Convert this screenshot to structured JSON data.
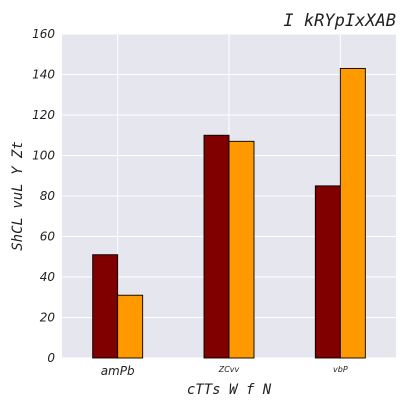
{
  "chart_data": {
    "type": "bar",
    "title": "I kRYpIxXAB",
    "xlabel": "cTTs W f N",
    "ylabel": "ShCL vuL Y  Zt",
    "categories": [
      "amPb",
      "ZCvv",
      "vbP"
    ],
    "series": [
      {
        "color": "#800000",
        "values": [
          51,
          110,
          85
        ]
      },
      {
        "color": "#ff9900",
        "values": [
          31,
          107,
          143
        ]
      }
    ],
    "ylim": [
      0,
      160
    ],
    "yticks": [
      0,
      20,
      40,
      60,
      80,
      100,
      120,
      140,
      160
    ],
    "grid": true,
    "background": "#e6e6ef"
  }
}
